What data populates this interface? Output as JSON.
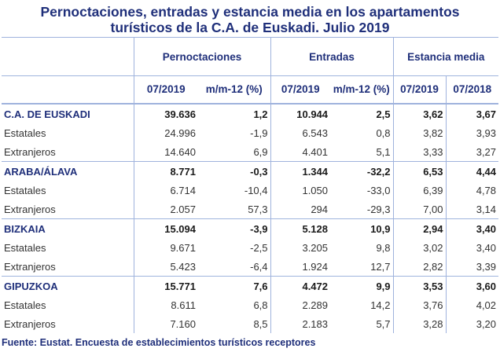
{
  "title_line1": "Pernoctaciones, entradas y estancia media en los apartamentos",
  "title_line2": "turísticos de la C.A. de Euskadi. Julio 2019",
  "headers": {
    "group": [
      "Pernoctaciones",
      "Entradas",
      "Estancia media"
    ],
    "sub": [
      "07/2019",
      "m/m-12 (%)",
      "07/2019",
      "m/m-12 (%)",
      "07/2019",
      "07/2018"
    ]
  },
  "rows": [
    {
      "label": "C.A. DE EUSKADI",
      "type": "region",
      "cells": [
        "39.636",
        "1,2",
        "10.944",
        "2,5",
        "3,62",
        "3,67"
      ]
    },
    {
      "label": "Estatales",
      "type": "sub",
      "cells": [
        "24.996",
        "-1,9",
        "6.543",
        "0,8",
        "3,82",
        "3,93"
      ]
    },
    {
      "label": "Extranjeros",
      "type": "sub",
      "cells": [
        "14.640",
        "6,9",
        "4.401",
        "5,1",
        "3,33",
        "3,27"
      ]
    },
    {
      "label": "ARABA/ÁLAVA",
      "type": "region",
      "cells": [
        "8.771",
        "-0,3",
        "1.344",
        "-32,2",
        "6,53",
        "4,44"
      ]
    },
    {
      "label": "Estatales",
      "type": "sub",
      "cells": [
        "6.714",
        "-10,4",
        "1.050",
        "-33,0",
        "6,39",
        "4,78"
      ]
    },
    {
      "label": "Extranjeros",
      "type": "sub",
      "cells": [
        "2.057",
        "57,3",
        "294",
        "-29,3",
        "7,00",
        "3,14"
      ]
    },
    {
      "label": "BIZKAIA",
      "type": "region",
      "cells": [
        "15.094",
        "-3,9",
        "5.128",
        "10,9",
        "2,94",
        "3,40"
      ]
    },
    {
      "label": "Estatales",
      "type": "sub",
      "cells": [
        "9.671",
        "-2,5",
        "3.205",
        "9,8",
        "3,02",
        "3,40"
      ]
    },
    {
      "label": "Extranjeros",
      "type": "sub",
      "cells": [
        "5.423",
        "-6,4",
        "1.924",
        "12,7",
        "2,82",
        "3,39"
      ]
    },
    {
      "label": "GIPUZKOA",
      "type": "region",
      "cells": [
        "15.771",
        "7,6",
        "4.472",
        "9,9",
        "3,53",
        "3,60"
      ]
    },
    {
      "label": "Estatales",
      "type": "sub",
      "cells": [
        "8.611",
        "6,8",
        "2.289",
        "14,2",
        "3,76",
        "4,02"
      ]
    },
    {
      "label": "Extranjeros",
      "type": "sub",
      "cells": [
        "7.160",
        "8,5",
        "2.183",
        "5,7",
        "3,28",
        "3,20"
      ]
    }
  ],
  "source": "Fuente: Eustat. Encuesta de establecimientos turísticos receptores",
  "colors": {
    "accent": "#1f2f7a",
    "rule": "#9fb3dd"
  }
}
